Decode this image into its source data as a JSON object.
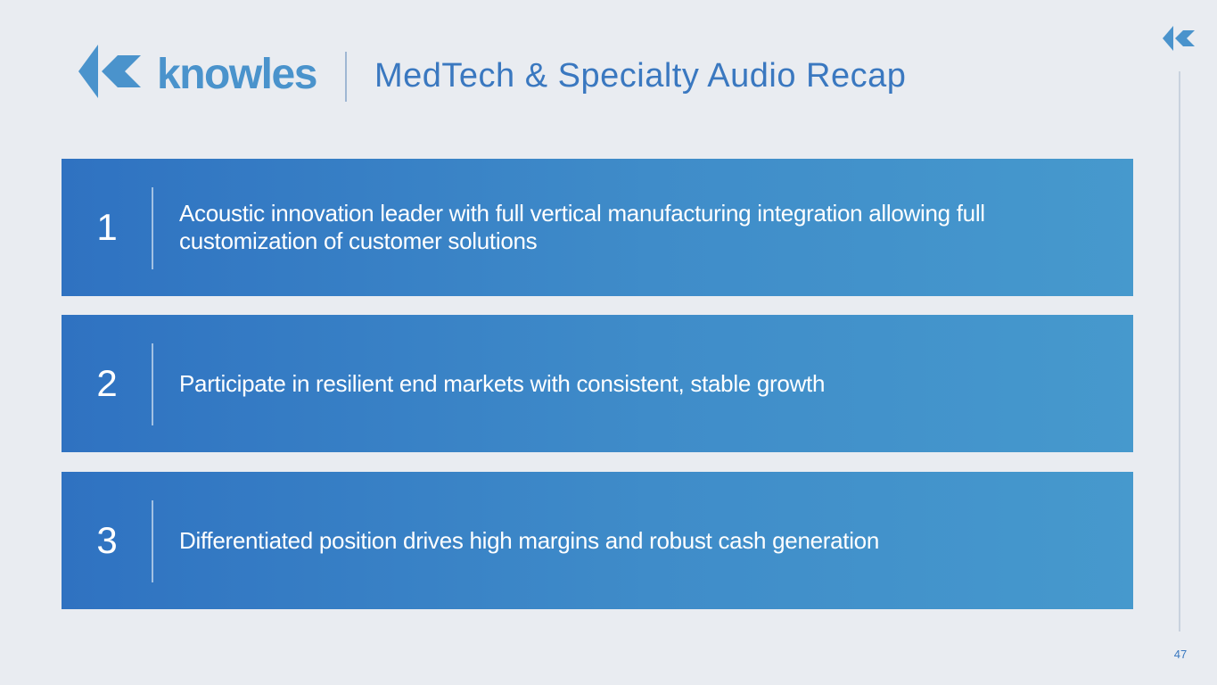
{
  "header": {
    "logo_text": "knowles",
    "title": "MedTech & Specialty Audio Recap"
  },
  "items": [
    {
      "number": "1",
      "text": "Acoustic innovation leader with full vertical manufacturing integration allowing full customization of customer solutions"
    },
    {
      "number": "2",
      "text": "Participate in resilient end markets with consistent, stable growth"
    },
    {
      "number": "3",
      "text": "Differentiated position drives high margins and robust cash generation"
    }
  ],
  "footer": {
    "page_number": "47"
  }
}
